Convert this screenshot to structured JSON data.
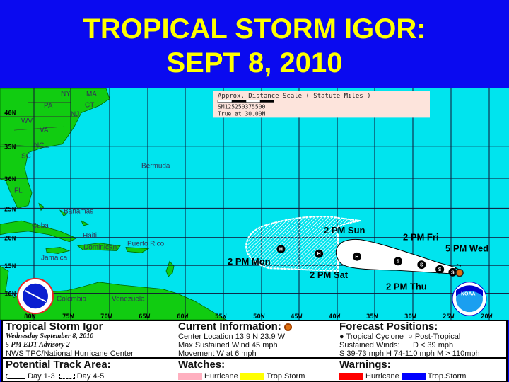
{
  "title": {
    "line1": "TROPICAL STORM IGOR:",
    "line2": "SEPT 8, 2010"
  },
  "map": {
    "scale": {
      "title": "Approx. Distance Scale ( Statute Miles )",
      "ticks": "SM125250375500",
      "note": "True at 30.00N"
    },
    "lon_labels": [
      "80W",
      "75W",
      "70W",
      "65W",
      "60W",
      "55W",
      "50W",
      "45W",
      "40W",
      "35W",
      "30W",
      "25W",
      "20W"
    ],
    "lat_labels": [
      "40N",
      "35N",
      "30N",
      "25N",
      "20N",
      "15N",
      "10N"
    ],
    "places": [
      "NY",
      "PA",
      "MA",
      "CT",
      "NJ",
      "WV",
      "VA",
      "NC",
      "SC",
      "FL",
      "Bermuda",
      "Bahamas",
      "Cuba",
      "Haiti",
      "Dominican",
      "Puerto Rico",
      "Jamaica",
      "Colombia",
      "Venezuela"
    ],
    "forecast_labels": [
      "5 PM Wed",
      "2 PM Thu",
      "2 PM Fri",
      "2 PM Sat",
      "2 PM Sun",
      "2 PM Mon"
    ],
    "points": [
      {
        "type": "S",
        "lat": 14.0,
        "lon": 24.8
      },
      {
        "type": "S",
        "lat": 14.5,
        "lon": 26.5
      },
      {
        "type": "S",
        "lat": 15.3,
        "lon": 28.9
      },
      {
        "type": "S",
        "lat": 15.9,
        "lon": 32.0
      },
      {
        "type": "H",
        "lat": 16.7,
        "lon": 37.4
      },
      {
        "type": "H",
        "lat": 17.2,
        "lon": 42.4
      },
      {
        "type": "H",
        "lat": 18.0,
        "lon": 47.4
      }
    ],
    "current": {
      "lat": 13.9,
      "lon": 23.9
    },
    "colors": {
      "ocean": "#00e4ee",
      "land": "#11cc11",
      "cone": "#ffffff"
    }
  },
  "legend": {
    "storm": {
      "name": "Tropical Storm Igor",
      "date": "Wednesday September 8, 2010",
      "advisory": "5 PM EDT Advisory 2",
      "center": "NWS TPC/National Hurricane Center"
    },
    "current": {
      "heading": "Current Information:",
      "location": "Center Location 13.9 N  23.9 W",
      "wind": "Max Sustained Wind  45 mph",
      "movement": "Movement W at  6 mph"
    },
    "forecast": {
      "heading": "Forecast Positions:",
      "tc": "Tropical Cyclone",
      "pt": "Post-Tropical",
      "winds": "Sustained Winds:",
      "d": "D  < 39 mph",
      "shm": "S  39-73 mph  H  74-110 mph  M  > 110mph"
    },
    "track": {
      "heading": "Potential Track Area:",
      "d13": "Day 1-3",
      "d45": "Day 4-5"
    },
    "watches": {
      "heading": "Watches:",
      "hurricane": "Hurricane",
      "ts": "Trop.Storm",
      "colors": [
        "#ffb0c0",
        "#ffff00"
      ]
    },
    "warnings": {
      "heading": "Warnings:",
      "hurricane": "Hurricane",
      "ts": "Trop.Storm",
      "colors": [
        "#ff0000",
        "#0000ff"
      ]
    }
  }
}
